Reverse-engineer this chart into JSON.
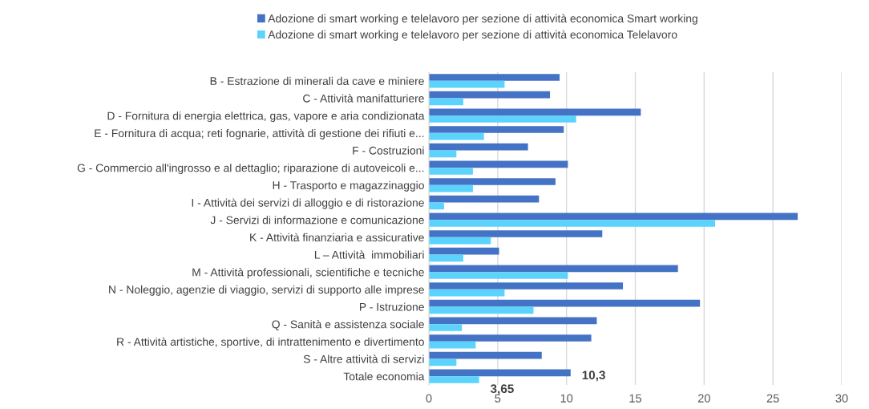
{
  "chart_data": {
    "type": "bar",
    "orientation": "horizontal",
    "categories": [
      "B - Estrazione di minerali da cave e miniere",
      "C - Attività manifatturiere",
      "D - Fornitura di energia elettrica, gas, vapore e aria condizionata",
      "E - Fornitura di acqua; reti fognarie, attività di gestione dei rifiuti e...",
      "F - Costruzioni",
      "G - Commercio all'ingrosso e al dettaglio; riparazione di autoveicoli e...",
      "H - Trasporto e magazzinaggio",
      "I - Attività dei servizi di alloggio e di ristorazione",
      "J - Servizi di informazione e comunicazione",
      "K - Attività finanziaria e assicurative",
      "L – Attività  immobiliari",
      "M - Attività professionali, scientifiche e tecniche",
      "N - Noleggio, agenzie di viaggio, servizi di supporto alle imprese",
      "P - Istruzione",
      "Q - Sanità e assistenza sociale",
      "R - Attività artistiche, sportive, di intrattenimento e divertimento",
      "S - Altre attività di servizi",
      "Totale economia"
    ],
    "series": [
      {
        "name": "Adozione di smart working e telelavoro per sezione di attività economica Smart working",
        "color": "#4472c4",
        "values": [
          9.5,
          8.8,
          15.4,
          9.8,
          7.2,
          10.1,
          9.2,
          8.0,
          26.8,
          12.6,
          5.1,
          18.1,
          14.1,
          19.7,
          12.2,
          11.8,
          8.2,
          10.3
        ],
        "value_labels": [
          null,
          null,
          null,
          null,
          null,
          null,
          null,
          null,
          null,
          null,
          null,
          null,
          null,
          null,
          null,
          null,
          null,
          "10,3"
        ]
      },
      {
        "name": "Adozione di smart working e telelavoro per sezione di attività economica Telelavoro",
        "color": "#5bd3fc",
        "values": [
          5.5,
          2.5,
          10.7,
          4.0,
          2.0,
          3.2,
          3.2,
          1.1,
          20.8,
          4.5,
          2.5,
          10.1,
          5.5,
          7.6,
          2.4,
          3.4,
          2.0,
          3.65
        ],
        "value_labels": [
          null,
          null,
          null,
          null,
          null,
          null,
          null,
          null,
          null,
          null,
          null,
          null,
          null,
          null,
          null,
          null,
          null,
          "3,65"
        ]
      }
    ],
    "xlim": [
      0,
      30
    ],
    "xticks": [
      0,
      5,
      10,
      15,
      20,
      25,
      30
    ],
    "grid": "x",
    "legend": "top"
  }
}
